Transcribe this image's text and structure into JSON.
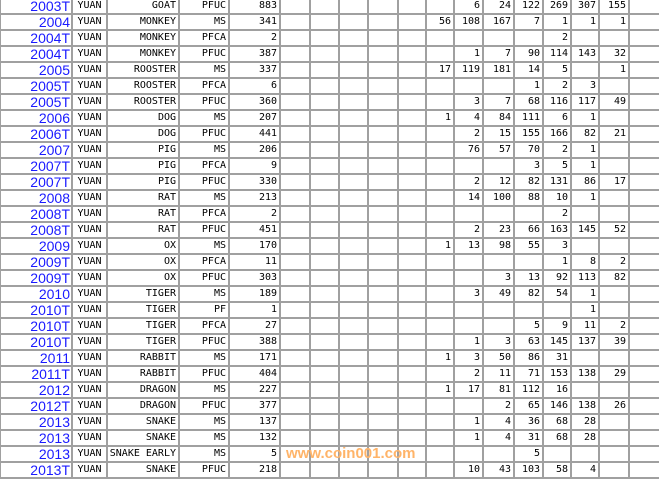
{
  "rows": [
    {
      "year": "2003T",
      "country": "YUAN",
      "animal": "GOAT",
      "type": "PFUC",
      "count": "883",
      "grades": [
        "",
        "6",
        "24",
        "122",
        "269",
        "307",
        "155"
      ]
    },
    {
      "year": "2004",
      "country": "YUAN",
      "animal": "MONKEY",
      "type": "MS",
      "count": "341",
      "grades": [
        "56",
        "108",
        "167",
        "7",
        "1",
        "1",
        "1"
      ]
    },
    {
      "year": "2004T",
      "country": "YUAN",
      "animal": "MONKEY",
      "type": "PFCA",
      "count": "2",
      "grades": [
        "",
        "",
        "",
        "",
        "2",
        "",
        ""
      ]
    },
    {
      "year": "2004T",
      "country": "YUAN",
      "animal": "MONKEY",
      "type": "PFUC",
      "count": "387",
      "grades": [
        "",
        "1",
        "7",
        "90",
        "114",
        "143",
        "32"
      ]
    },
    {
      "year": "2005",
      "country": "YUAN",
      "animal": "ROOSTER",
      "type": "MS",
      "count": "337",
      "grades": [
        "17",
        "119",
        "181",
        "14",
        "5",
        "",
        "1"
      ]
    },
    {
      "year": "2005T",
      "country": "YUAN",
      "animal": "ROOSTER",
      "type": "PFCA",
      "count": "6",
      "grades": [
        "",
        "",
        "",
        "1",
        "2",
        "3",
        ""
      ]
    },
    {
      "year": "2005T",
      "country": "YUAN",
      "animal": "ROOSTER",
      "type": "PFUC",
      "count": "360",
      "grades": [
        "",
        "3",
        "7",
        "68",
        "116",
        "117",
        "49"
      ]
    },
    {
      "year": "2006",
      "country": "YUAN",
      "animal": "DOG",
      "type": "MS",
      "count": "207",
      "grades": [
        "1",
        "4",
        "84",
        "111",
        "6",
        "1",
        ""
      ]
    },
    {
      "year": "2006T",
      "country": "YUAN",
      "animal": "DOG",
      "type": "PFUC",
      "count": "441",
      "grades": [
        "",
        "2",
        "15",
        "155",
        "166",
        "82",
        "21"
      ]
    },
    {
      "year": "2007",
      "country": "YUAN",
      "animal": "PIG",
      "type": "MS",
      "count": "206",
      "grades": [
        "",
        "76",
        "57",
        "70",
        "2",
        "1",
        ""
      ]
    },
    {
      "year": "2007T",
      "country": "YUAN",
      "animal": "PIG",
      "type": "PFCA",
      "count": "9",
      "grades": [
        "",
        "",
        "",
        "3",
        "5",
        "1",
        ""
      ]
    },
    {
      "year": "2007T",
      "country": "YUAN",
      "animal": "PIG",
      "type": "PFUC",
      "count": "330",
      "grades": [
        "",
        "2",
        "12",
        "82",
        "131",
        "86",
        "17"
      ]
    },
    {
      "year": "2008",
      "country": "YUAN",
      "animal": "RAT",
      "type": "MS",
      "count": "213",
      "grades": [
        "",
        "14",
        "100",
        "88",
        "10",
        "1",
        ""
      ]
    },
    {
      "year": "2008T",
      "country": "YUAN",
      "animal": "RAT",
      "type": "PFCA",
      "count": "2",
      "grades": [
        "",
        "",
        "",
        "",
        "2",
        "",
        ""
      ]
    },
    {
      "year": "2008T",
      "country": "YUAN",
      "animal": "RAT",
      "type": "PFUC",
      "count": "451",
      "grades": [
        "",
        "2",
        "23",
        "66",
        "163",
        "145",
        "52"
      ]
    },
    {
      "year": "2009",
      "country": "YUAN",
      "animal": "OX",
      "type": "MS",
      "count": "170",
      "grades": [
        "1",
        "13",
        "98",
        "55",
        "3",
        "",
        ""
      ]
    },
    {
      "year": "2009T",
      "country": "YUAN",
      "animal": "OX",
      "type": "PFCA",
      "count": "11",
      "grades": [
        "",
        "",
        "",
        "",
        "1",
        "8",
        "2"
      ]
    },
    {
      "year": "2009T",
      "country": "YUAN",
      "animal": "OX",
      "type": "PFUC",
      "count": "303",
      "grades": [
        "",
        "",
        "3",
        "13",
        "92",
        "113",
        "82"
      ]
    },
    {
      "year": "2010",
      "country": "YUAN",
      "animal": "TIGER",
      "type": "MS",
      "count": "189",
      "grades": [
        "",
        "3",
        "49",
        "82",
        "54",
        "1",
        ""
      ]
    },
    {
      "year": "2010T",
      "country": "YUAN",
      "animal": "TIGER",
      "type": "PF",
      "count": "1",
      "grades": [
        "",
        "",
        "",
        "",
        "",
        "1",
        ""
      ]
    },
    {
      "year": "2010T",
      "country": "YUAN",
      "animal": "TIGER",
      "type": "PFCA",
      "count": "27",
      "grades": [
        "",
        "",
        "",
        "5",
        "9",
        "11",
        "2"
      ]
    },
    {
      "year": "2010T",
      "country": "YUAN",
      "animal": "TIGER",
      "type": "PFUC",
      "count": "388",
      "grades": [
        "",
        "1",
        "3",
        "63",
        "145",
        "137",
        "39"
      ]
    },
    {
      "year": "2011",
      "country": "YUAN",
      "animal": "RABBIT",
      "type": "MS",
      "count": "171",
      "grades": [
        "1",
        "3",
        "50",
        "86",
        "31",
        "",
        ""
      ]
    },
    {
      "year": "2011T",
      "country": "YUAN",
      "animal": "RABBIT",
      "type": "PFUC",
      "count": "404",
      "grades": [
        "",
        "2",
        "11",
        "71",
        "153",
        "138",
        "29"
      ]
    },
    {
      "year": "2012",
      "country": "YUAN",
      "animal": "DRAGON",
      "type": "MS",
      "count": "227",
      "grades": [
        "1",
        "17",
        "81",
        "112",
        "16",
        "",
        ""
      ]
    },
    {
      "year": "2012T",
      "country": "YUAN",
      "animal": "DRAGON",
      "type": "PFUC",
      "count": "377",
      "grades": [
        "",
        "",
        "2",
        "65",
        "146",
        "138",
        "26"
      ]
    },
    {
      "year": "2013",
      "country": "YUAN",
      "animal": "SNAKE",
      "type": "MS",
      "count": "137",
      "grades": [
        "",
        "1",
        "4",
        "36",
        "68",
        "28",
        ""
      ]
    },
    {
      "year": "2013",
      "country": "YUAN",
      "animal": "SNAKE",
      "type": "MS",
      "count": "132",
      "grades": [
        "",
        "1",
        "4",
        "31",
        "68",
        "28",
        ""
      ]
    },
    {
      "year": "2013",
      "country": "YUAN",
      "animal": "SNAKE EARLY",
      "type": "MS",
      "count": "5",
      "grades": [
        "",
        "",
        "",
        "5",
        "",
        "",
        ""
      ]
    },
    {
      "year": "2013T",
      "country": "YUAN",
      "animal": "SNAKE",
      "type": "PFUC",
      "count": "218",
      "grades": [
        "",
        "10",
        "43",
        "103",
        "58",
        "4",
        ""
      ]
    }
  ],
  "watermark": "www.coin001.com",
  "colors": {
    "link": "#1a1aff",
    "grid": "#a0a0a0",
    "watermark": "#ffb469"
  }
}
